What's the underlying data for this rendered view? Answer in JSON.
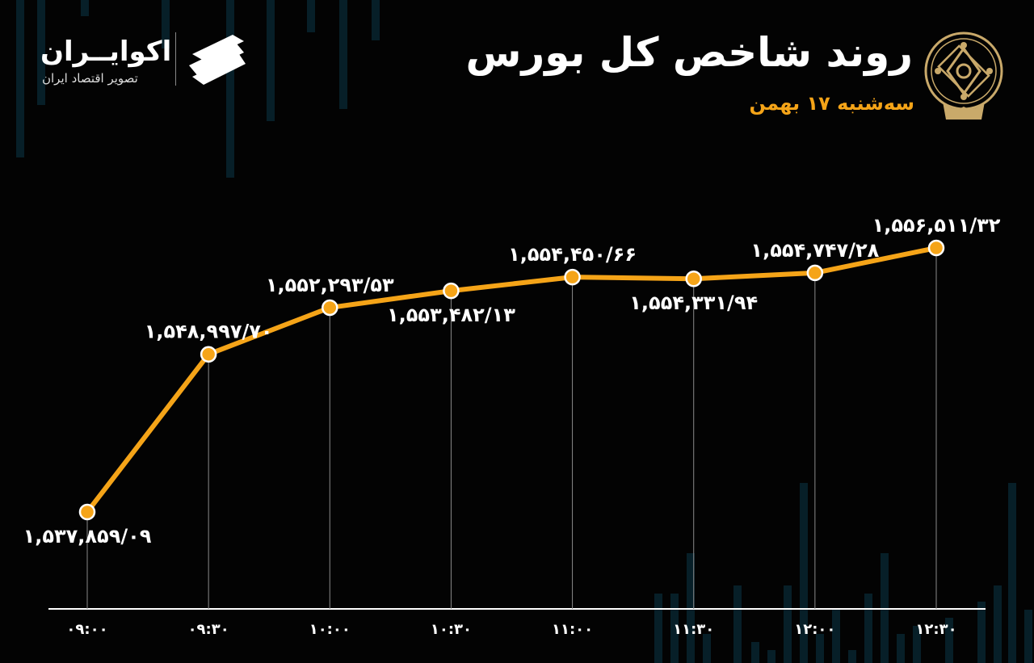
{
  "header": {
    "title": "روند شاخص کل بورس",
    "subtitle": "سه‌شنبه ۱۷ بهمن"
  },
  "brand": {
    "name": "اکوایــران",
    "tagline": "تصویر اقتصاد ایران"
  },
  "colors": {
    "background": "#030303",
    "line": "#f5a418",
    "text": "#ffffff",
    "decor_bars": "#0a2a35"
  },
  "chart_data": {
    "type": "line",
    "title": "روند شاخص کل بورس",
    "subtitle": "سه‌شنبه ۱۷ بهمن",
    "xlabel": "",
    "ylabel": "",
    "categories": [
      "۰۹:۰۰",
      "۰۹:۳۰",
      "۱۰:۰۰",
      "۱۰:۳۰",
      "۱۱:۰۰",
      "۱۱:۳۰",
      "۱۲:۰۰",
      "۱۲:۳۰"
    ],
    "values": [
      1537859.09,
      1548997.7,
      1552293.53,
      1553482.13,
      1554450.66,
      1554331.94,
      1554747.28,
      1556511.32
    ],
    "value_labels": [
      "۱,۵۳۷,۸۵۹/۰۹",
      "۱,۵۴۸,۹۹۷/۷۰",
      "۱,۵۵۲,۲۹۳/۵۳",
      "۱,۵۵۳,۴۸۲/۱۳",
      "۱,۵۵۴,۴۵۰/۶۶",
      "۱,۵۵۴,۳۳۱/۹۴",
      "۱,۵۵۴,۷۴۷/۲۸",
      "۱,۵۵۶,۵۱۱/۳۲"
    ],
    "label_positions": [
      "below",
      "above",
      "above",
      "below",
      "above",
      "below",
      "above",
      "above"
    ],
    "grid": false,
    "legend": "none"
  }
}
